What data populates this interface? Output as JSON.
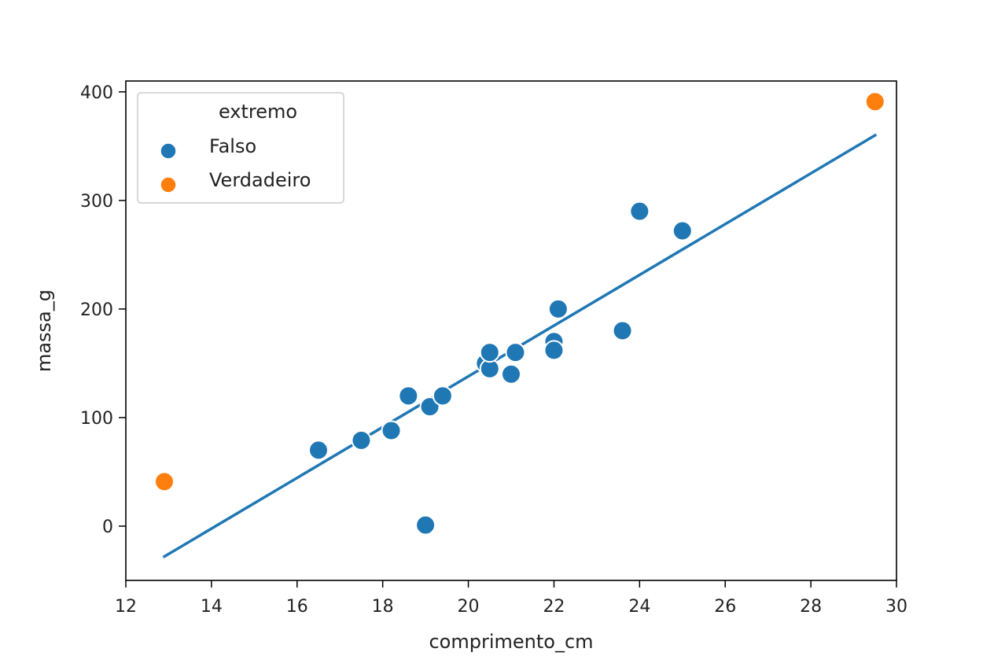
{
  "chart_data": {
    "type": "scatter",
    "xlabel": "comprimento_cm",
    "ylabel": "massa_g",
    "xlim": [
      12,
      30
    ],
    "ylim": [
      -50,
      410
    ],
    "xticks": [
      12,
      14,
      16,
      18,
      20,
      22,
      24,
      26,
      28,
      30
    ],
    "yticks": [
      0,
      100,
      200,
      300,
      400
    ],
    "grid": false,
    "legend": {
      "title": "extremo",
      "placement": "top-left",
      "entries": [
        {
          "label": "Falso",
          "color": "#1f77b4"
        },
        {
          "label": "Verdadeiro",
          "color": "#ff7f0e"
        }
      ]
    },
    "series": [
      {
        "name": "Falso",
        "color": "#1f77b4",
        "points": [
          [
            16.5,
            70
          ],
          [
            17.5,
            79
          ],
          [
            18.2,
            88
          ],
          [
            18.6,
            120
          ],
          [
            19.0,
            1
          ],
          [
            19.1,
            110
          ],
          [
            19.4,
            120
          ],
          [
            20.4,
            150
          ],
          [
            20.5,
            145
          ],
          [
            20.5,
            160
          ],
          [
            21.0,
            140
          ],
          [
            21.1,
            160
          ],
          [
            22.0,
            170
          ],
          [
            22.0,
            162
          ],
          [
            22.1,
            200
          ],
          [
            23.6,
            180
          ],
          [
            24.0,
            290
          ],
          [
            25.0,
            272
          ]
        ]
      },
      {
        "name": "Verdadeiro",
        "color": "#ff7f0e",
        "points": [
          [
            12.9,
            41
          ],
          [
            29.5,
            391
          ]
        ]
      }
    ],
    "regression_line": {
      "color": "#1f77b4",
      "from": [
        12.9,
        -28
      ],
      "to": [
        29.5,
        360
      ]
    }
  }
}
